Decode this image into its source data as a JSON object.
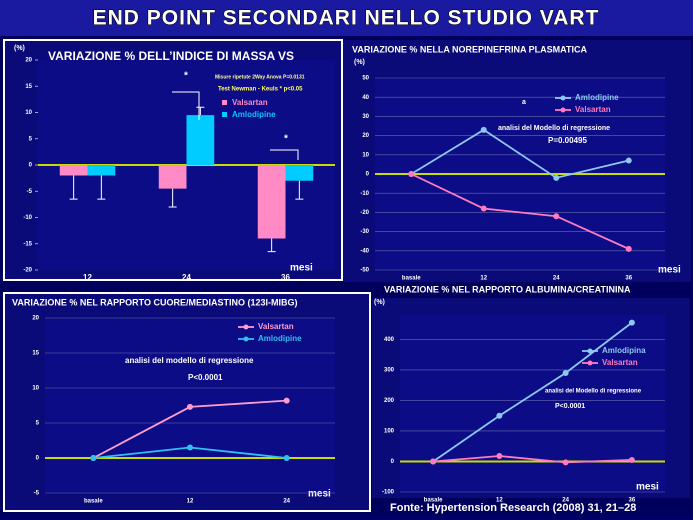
{
  "title": "END POINT SECONDARI NELLO STUDIO VART",
  "source": "Fonte: Hypertension Research (2008) 31, 21–28",
  "chart_data": [
    {
      "type": "bar",
      "title": "VARIAZIONE % DELL’INDICE DI MASSA VS",
      "y_label": "(%)",
      "x_label": "mesi",
      "categories": [
        "12",
        "24",
        "36"
      ],
      "series": [
        {
          "name": "Valsartan",
          "color": "#ff8ac6",
          "values": [
            -2,
            -4.5,
            -14
          ],
          "errors": [
            4.5,
            3.5,
            2.5
          ]
        },
        {
          "name": "Amlodipine",
          "color": "#00ccff",
          "values": [
            -2,
            9.5,
            -3
          ],
          "errors": [
            4.5,
            1.5,
            3.5
          ]
        }
      ],
      "ylim": [
        -20,
        20
      ],
      "yticks": [
        -20,
        -15,
        -10,
        -5,
        0,
        5,
        10,
        15,
        20
      ],
      "grid": false,
      "annotations": [
        "Misure ripetute 2Way Anova  P=0.0131",
        "Test Newman - Keuls * p<0.05",
        "*",
        "*"
      ]
    },
    {
      "type": "line",
      "title": "VARIAZIONE % NELLA NOREPINEFRINA PLASMATICA",
      "y_label": "(%)",
      "x_label": "mesi",
      "categories": [
        "basale",
        "12",
        "24",
        "36"
      ],
      "series": [
        {
          "name": "Amlodipine",
          "color": "#8cc8f0",
          "values": [
            0,
            23,
            -2,
            7
          ]
        },
        {
          "name": "Valsartan",
          "color": "#ff7ac0",
          "values": [
            0,
            -18,
            -22,
            -39
          ]
        }
      ],
      "ylim": [
        -50,
        50
      ],
      "yticks": [
        -50,
        -40,
        -30,
        -20,
        -10,
        0,
        10,
        20,
        30,
        40,
        50
      ],
      "grid": true,
      "annotations": [
        "a",
        "analisi del Modello di regressione",
        "P=0.00495"
      ]
    },
    {
      "type": "line",
      "title": "VARIAZIONE % NEL RAPPORTO CUORE/MEDIASTINO (123I-MIBG)",
      "x_label": "mesi",
      "categories": [
        "basale",
        "12",
        "24"
      ],
      "series": [
        {
          "name": "Valsartan",
          "color": "#ff9ccc",
          "values": [
            0,
            7.3,
            8.2
          ]
        },
        {
          "name": "Amlodipine",
          "color": "#30c0f0",
          "values": [
            0,
            1.5,
            0
          ]
        }
      ],
      "ylim": [
        -5,
        20
      ],
      "yticks": [
        -5,
        0,
        5,
        10,
        15,
        20
      ],
      "grid": true,
      "annotations": [
        "analisi del modello di regressione",
        "P<0.0001"
      ]
    },
    {
      "type": "line",
      "title": "VARIAZIONE % NEL RAPPORTO ALBUMINA/CREATININA",
      "y_label": "(%)",
      "x_label": "mesi",
      "categories": [
        "basale",
        "12",
        "24",
        "36"
      ],
      "series": [
        {
          "name": "Amlodipina",
          "color": "#8cc8f0",
          "values": [
            0,
            150,
            290,
            455
          ]
        },
        {
          "name": "Valsartan",
          "color": "#ff7ac0",
          "values": [
            0,
            18,
            -3,
            5
          ]
        }
      ],
      "ylim": [
        -100,
        480
      ],
      "yticks": [
        -100,
        0,
        100,
        200,
        300,
        400
      ],
      "grid": true,
      "annotations": [
        "analisi del Modello di regressione",
        "P<0.0001"
      ]
    }
  ]
}
